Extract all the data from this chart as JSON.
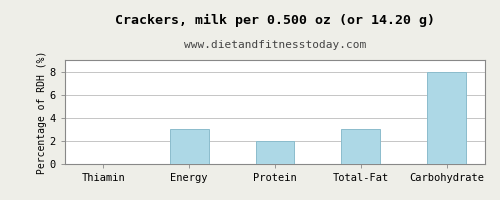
{
  "title": "Crackers, milk per 0.500 oz (or 14.20 g)",
  "subtitle": "www.dietandfitnesstoday.com",
  "categories": [
    "Thiamin",
    "Energy",
    "Protein",
    "Total-Fat",
    "Carbohydrate"
  ],
  "values": [
    0,
    3,
    2,
    3,
    8
  ],
  "bar_color": "#add8e6",
  "bar_edge_color": "#8bbccc",
  "ylabel": "Percentage of RDH (%)",
  "ylim": [
    0,
    9
  ],
  "yticks": [
    0,
    2,
    4,
    6,
    8
  ],
  "background_color": "#eeeee8",
  "plot_bg_color": "#ffffff",
  "title_fontsize": 9.5,
  "subtitle_fontsize": 8,
  "ylabel_fontsize": 7,
  "tick_fontsize": 7.5,
  "grid_color": "#bbbbbb"
}
